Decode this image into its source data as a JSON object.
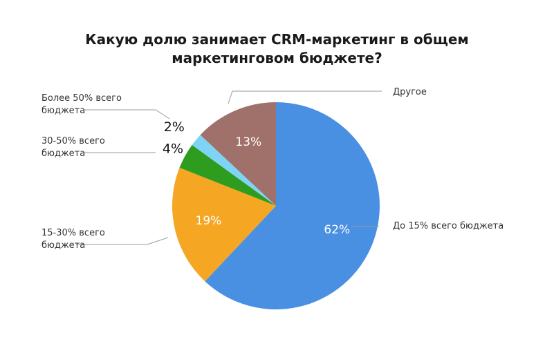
{
  "chart_data": {
    "type": "pie",
    "title": [
      "Какую долю занимает CRM-маркетинг в общем",
      "маркетинговом бюджете?"
    ],
    "slices": [
      {
        "value": 62,
        "display": "62%",
        "label": [
          "До 15% всего бюджета"
        ],
        "color": "#4a90e2"
      },
      {
        "value": 19,
        "display": "19%",
        "label": [
          "15-30% всего",
          "бюджета"
        ],
        "color": "#f5a623"
      },
      {
        "value": 4,
        "display": "4%",
        "label": [
          "30-50% всего",
          "бюджета"
        ],
        "color": "#2e9c1f"
      },
      {
        "value": 2,
        "display": "2%",
        "label": [
          "Более 50% всего",
          "бюджета"
        ],
        "color": "#7fd3f5"
      },
      {
        "value": 13,
        "display": "13%",
        "label": [
          "Другое"
        ],
        "color": "#a0706b"
      }
    ]
  }
}
